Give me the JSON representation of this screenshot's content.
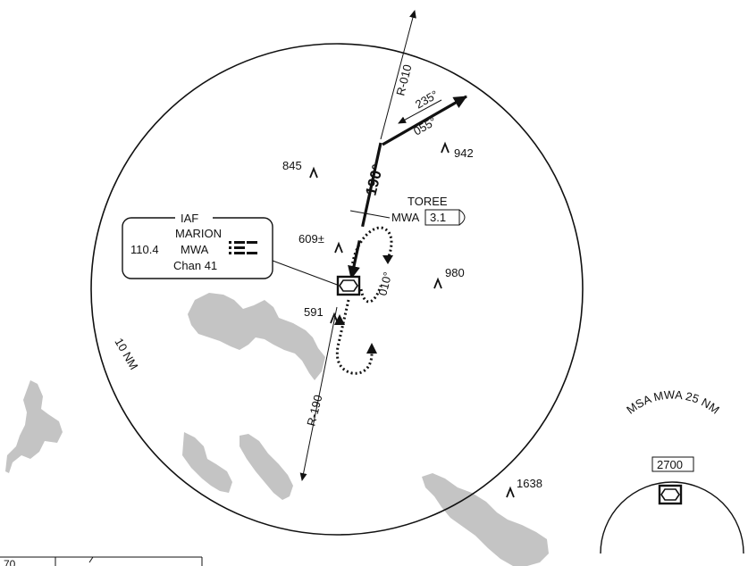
{
  "colors": {
    "ink": "#111111",
    "water": "#c4c4c4",
    "background": "#ffffff"
  },
  "ring_label": "10 NM",
  "radials": {
    "north": "R-010",
    "south": "R-190"
  },
  "inbound_course": "190°",
  "procedure_turn": {
    "outbound": "235°",
    "inbound": "055°"
  },
  "hold_course": "010°",
  "fix": {
    "name": "TOREE",
    "facility": "MWA",
    "distance": "3.1"
  },
  "iaf_box": {
    "header": "IAF",
    "name": "MARION",
    "frequency": "110.4",
    "ident": "MWA",
    "channel": "Chan 41"
  },
  "obstacles": [
    "845",
    "942",
    "609±",
    "980",
    "591",
    "1638"
  ],
  "msa": {
    "title": "MSA MWA 25 NM",
    "altitude": "2700"
  },
  "corner_text": "70"
}
